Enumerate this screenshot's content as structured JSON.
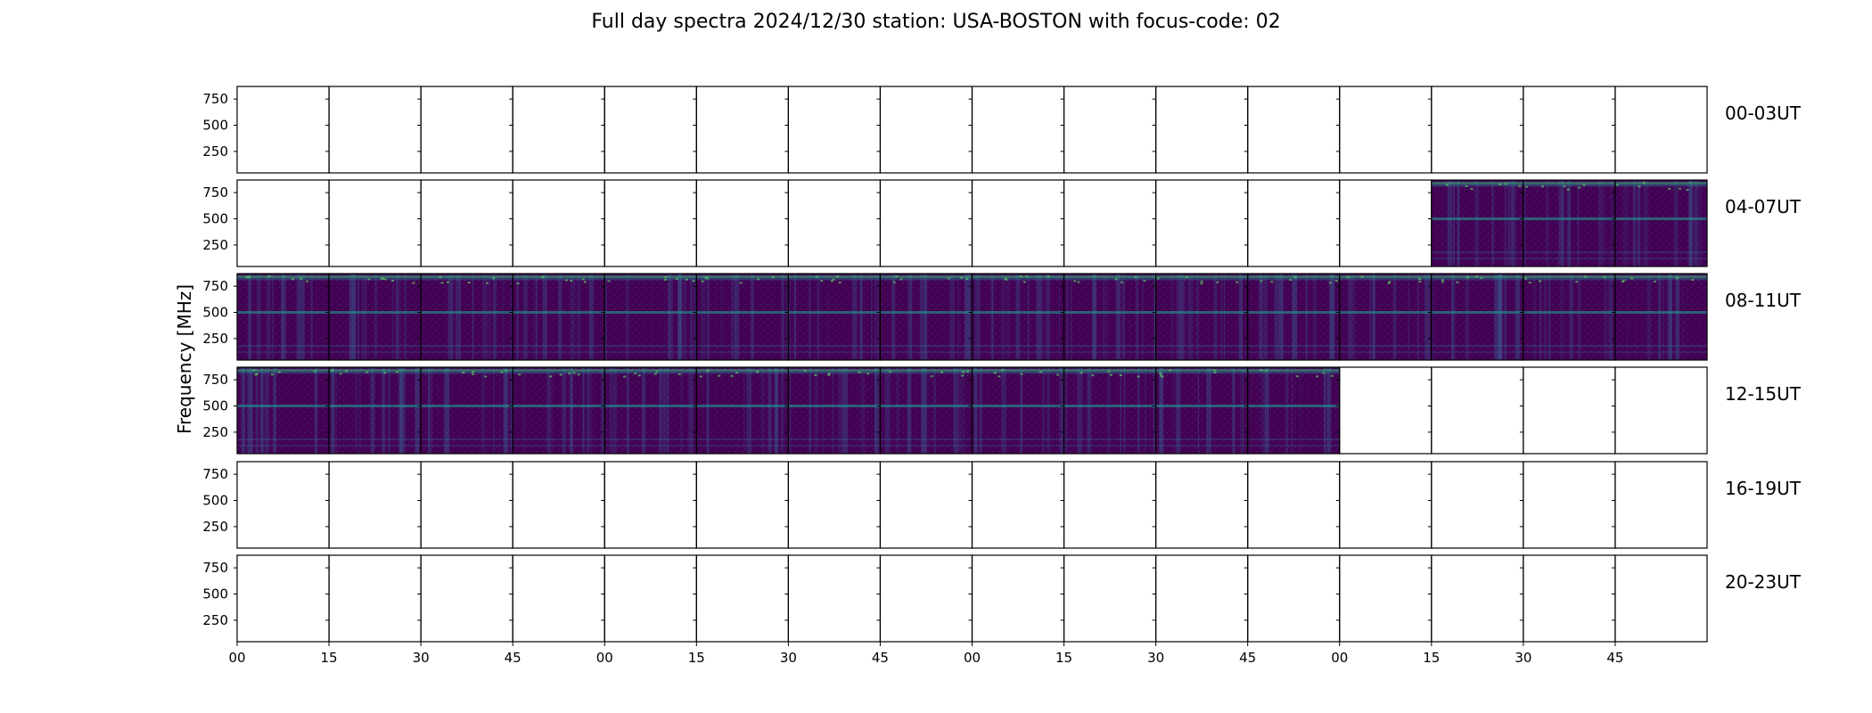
{
  "chart_data": {
    "type": "heatmap",
    "title": "Full day spectra 2024/12/30 station: USA-BOSTON with focus-code: 02",
    "ylabel": "Frequency [MHz]",
    "xlabel": "",
    "y_ticks": [
      250,
      500,
      750
    ],
    "ylim": [
      45,
      870
    ],
    "x_ticks": [
      "00",
      "15",
      "30",
      "45",
      "00",
      "15",
      "30",
      "45",
      "00",
      "15",
      "30",
      "45",
      "00",
      "15",
      "30",
      "45"
    ],
    "panels_per_row": 16,
    "panel_minutes": 15,
    "colormap": "viridis",
    "rows": [
      {
        "label": "00-03UT",
        "has_data": [
          0,
          0,
          0,
          0,
          0,
          0,
          0,
          0,
          0,
          0,
          0,
          0,
          0,
          0,
          0,
          0
        ]
      },
      {
        "label": "04-07UT",
        "has_data": [
          0,
          0,
          0,
          0,
          0,
          0,
          0,
          0,
          0,
          0,
          0,
          0,
          0,
          1,
          1,
          1
        ]
      },
      {
        "label": "08-11UT",
        "has_data": [
          1,
          1,
          1,
          1,
          1,
          1,
          1,
          1,
          1,
          1,
          1,
          1,
          1,
          1,
          1,
          1
        ]
      },
      {
        "label": "12-15UT",
        "has_data": [
          1,
          1,
          1,
          1,
          1,
          1,
          1,
          1,
          1,
          1,
          1,
          1,
          0,
          0,
          0,
          0
        ]
      },
      {
        "label": "16-19UT",
        "has_data": [
          0,
          0,
          0,
          0,
          0,
          0,
          0,
          0,
          0,
          0,
          0,
          0,
          0,
          0,
          0,
          0
        ]
      },
      {
        "label": "20-23UT",
        "has_data": [
          0,
          0,
          0,
          0,
          0,
          0,
          0,
          0,
          0,
          0,
          0,
          0,
          0,
          0,
          0,
          0
        ]
      }
    ]
  }
}
